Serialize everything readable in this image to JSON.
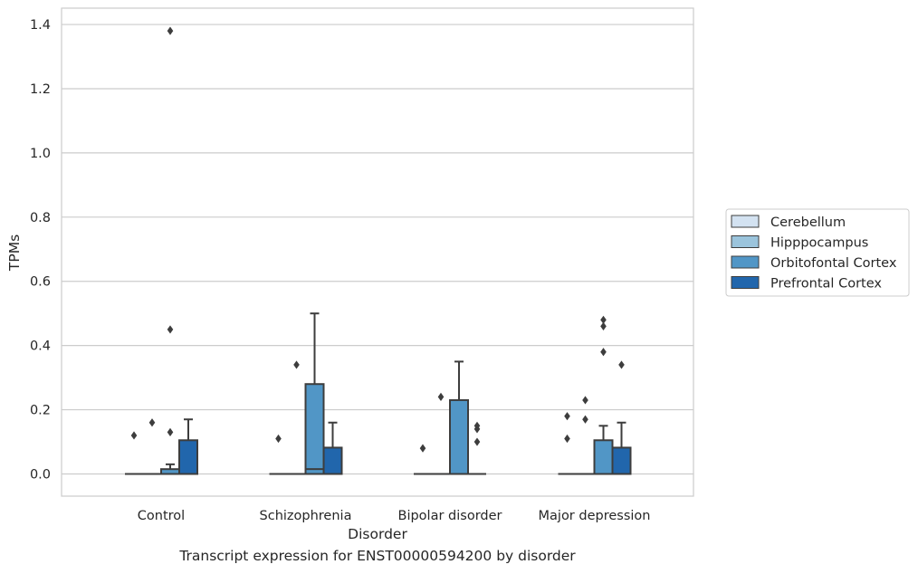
{
  "caption": "Transcript expression for ENST00000594200 by disorder",
  "chart_data": {
    "type": "box",
    "title": "",
    "xlabel": "Disorder",
    "ylabel": "TPMs",
    "ylim": [
      -0.07,
      1.45
    ],
    "yticks": [
      0.0,
      0.2,
      0.4,
      0.6,
      0.8,
      1.0,
      1.2,
      1.4
    ],
    "ytick_labels": [
      "0.0",
      "0.2",
      "0.4",
      "0.6",
      "0.8",
      "1.0",
      "1.2",
      "1.4"
    ],
    "grid": "horizontal",
    "legend_placement": "right, outside plot",
    "categories": [
      "Control",
      "Schizophrenia",
      "Bipolar disorder",
      "Major depression"
    ],
    "series": [
      {
        "name": "Cerebellum",
        "color": "#d3e2f1",
        "boxes": [
          {
            "q1": 0,
            "median": 0,
            "q3": 0,
            "whisker_low": 0,
            "whisker_high": 0,
            "outliers": [
              0.12
            ]
          },
          {
            "q1": 0,
            "median": 0,
            "q3": 0,
            "whisker_low": 0,
            "whisker_high": 0,
            "outliers": [
              0.11
            ]
          },
          {
            "q1": 0,
            "median": 0,
            "q3": 0,
            "whisker_low": 0,
            "whisker_high": 0,
            "outliers": [
              0.08
            ]
          },
          {
            "q1": 0,
            "median": 0,
            "q3": 0,
            "whisker_low": 0,
            "whisker_high": 0,
            "outliers": [
              0.11,
              0.18
            ]
          }
        ]
      },
      {
        "name": "Hipppocampus",
        "color": "#9bc4dc",
        "boxes": [
          {
            "q1": 0,
            "median": 0,
            "q3": 0,
            "whisker_low": 0,
            "whisker_high": 0,
            "outliers": [
              0.16
            ]
          },
          {
            "q1": 0,
            "median": 0,
            "q3": 0,
            "whisker_low": 0,
            "whisker_high": 0,
            "outliers": [
              0.34
            ]
          },
          {
            "q1": 0,
            "median": 0,
            "q3": 0,
            "whisker_low": 0,
            "whisker_high": 0,
            "outliers": [
              0.24
            ]
          },
          {
            "q1": 0,
            "median": 0,
            "q3": 0,
            "whisker_low": 0,
            "whisker_high": 0,
            "outliers": [
              0.17,
              0.23
            ]
          }
        ]
      },
      {
        "name": "Orbitofontal Cortex",
        "color": "#5196c6",
        "boxes": [
          {
            "q1": 0,
            "median": 0,
            "q3": 0.015,
            "whisker_low": 0,
            "whisker_high": 0.03,
            "outliers": [
              0.13,
              0.45,
              1.38
            ]
          },
          {
            "q1": 0,
            "median": 0.015,
            "q3": 0.28,
            "whisker_low": 0,
            "whisker_high": 0.5,
            "outliers": []
          },
          {
            "q1": 0,
            "median": 0,
            "q3": 0.23,
            "whisker_low": 0,
            "whisker_high": 0.35,
            "outliers": []
          },
          {
            "q1": 0,
            "median": 0,
            "q3": 0.105,
            "whisker_low": 0,
            "whisker_high": 0.15,
            "outliers": [
              0.38,
              0.46,
              0.48
            ]
          }
        ]
      },
      {
        "name": "Prefrontal Cortex",
        "color": "#2166ac",
        "boxes": [
          {
            "q1": 0,
            "median": 0,
            "q3": 0.105,
            "whisker_low": 0,
            "whisker_high": 0.17,
            "outliers": []
          },
          {
            "q1": 0,
            "median": 0,
            "q3": 0.082,
            "whisker_low": 0,
            "whisker_high": 0.16,
            "outliers": []
          },
          {
            "q1": 0,
            "median": 0,
            "q3": 0,
            "whisker_low": 0,
            "whisker_high": 0,
            "outliers": [
              0.1,
              0.14,
              0.15
            ]
          },
          {
            "q1": 0,
            "median": 0,
            "q3": 0.082,
            "whisker_low": 0,
            "whisker_high": 0.16,
            "outliers": [
              0.34
            ]
          }
        ]
      }
    ]
  }
}
